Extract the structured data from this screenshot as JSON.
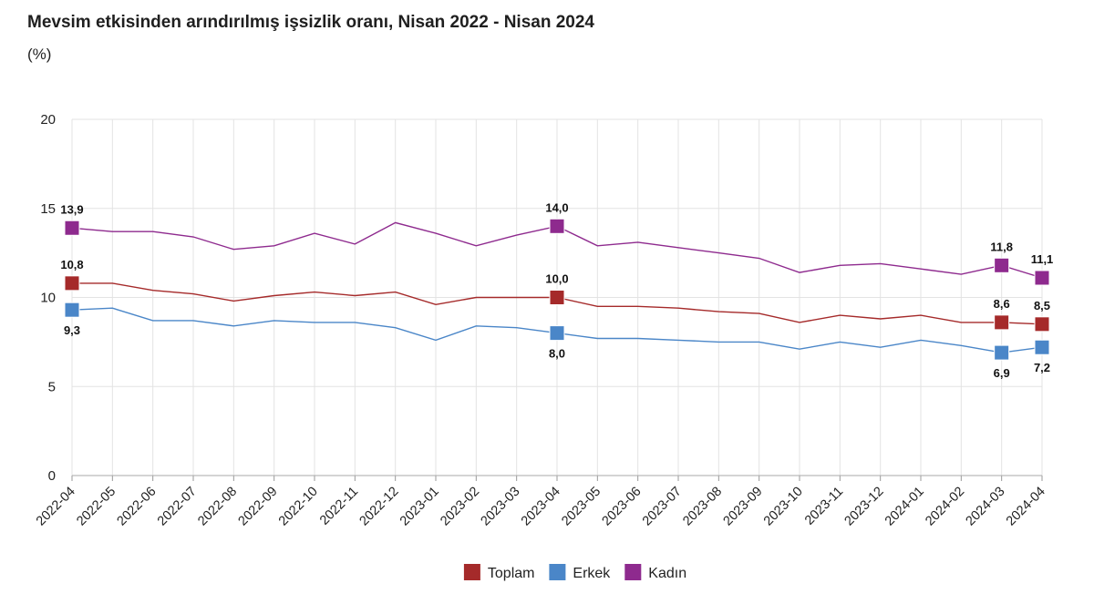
{
  "title": "Mevsim etkisinden arındırılmış işsizlik oranı, Nisan 2022 - Nisan 2024",
  "subtitle": "(%)",
  "chart_data": {
    "type": "line",
    "title": "Mevsim etkisinden arındırılmış işsizlik oranı, Nisan 2022 - Nisan 2024",
    "ylabel": "(%)",
    "ylim": [
      0,
      20
    ],
    "yticks": [
      0,
      5,
      10,
      15,
      20
    ],
    "grid": true,
    "legend_position": "bottom",
    "x": [
      "2022-04",
      "2022-05",
      "2022-06",
      "2022-07",
      "2022-08",
      "2022-09",
      "2022-10",
      "2022-11",
      "2022-12",
      "2023-01",
      "2023-02",
      "2023-03",
      "2023-04",
      "2023-05",
      "2023-06",
      "2023-07",
      "2023-08",
      "2023-09",
      "2023-10",
      "2023-11",
      "2023-12",
      "2024-01",
      "2024-02",
      "2024-03",
      "2024-04"
    ],
    "series": [
      {
        "name": "Toplam",
        "color": "#a52a2a",
        "values": [
          10.8,
          10.8,
          10.4,
          10.2,
          9.8,
          10.1,
          10.3,
          10.1,
          10.3,
          9.6,
          10.0,
          10.0,
          10.0,
          9.5,
          9.5,
          9.4,
          9.2,
          9.1,
          8.6,
          9.0,
          8.8,
          9.0,
          8.6,
          8.6,
          8.5
        ]
      },
      {
        "name": "Erkek",
        "color": "#4a86c8",
        "values": [
          9.3,
          9.4,
          8.7,
          8.7,
          8.4,
          8.7,
          8.6,
          8.6,
          8.3,
          7.6,
          8.4,
          8.3,
          8.0,
          7.7,
          7.7,
          7.6,
          7.5,
          7.5,
          7.1,
          7.5,
          7.2,
          7.6,
          7.3,
          6.9,
          7.2
        ]
      },
      {
        "name": "Kadın",
        "color": "#8e2a8e",
        "values": [
          13.9,
          13.7,
          13.7,
          13.4,
          12.7,
          12.9,
          13.6,
          13.0,
          14.2,
          13.6,
          12.9,
          13.5,
          14.0,
          12.9,
          13.1,
          12.8,
          12.5,
          12.2,
          11.4,
          11.8,
          11.9,
          11.6,
          11.3,
          11.8,
          11.1
        ]
      }
    ],
    "marked_indices": [
      0,
      12,
      23,
      24
    ],
    "data_labels": [
      {
        "series": "Kadın",
        "index": 0,
        "text": "13,9",
        "pos": "above"
      },
      {
        "series": "Toplam",
        "index": 0,
        "text": "10,8",
        "pos": "above"
      },
      {
        "series": "Erkek",
        "index": 0,
        "text": "9,3",
        "pos": "below"
      },
      {
        "series": "Kadın",
        "index": 12,
        "text": "14,0",
        "pos": "above"
      },
      {
        "series": "Toplam",
        "index": 12,
        "text": "10,0",
        "pos": "above"
      },
      {
        "series": "Erkek",
        "index": 12,
        "text": "8,0",
        "pos": "below"
      },
      {
        "series": "Kadın",
        "index": 23,
        "text": "11,8",
        "pos": "above"
      },
      {
        "series": "Toplam",
        "index": 23,
        "text": "8,6",
        "pos": "above"
      },
      {
        "series": "Erkek",
        "index": 23,
        "text": "6,9",
        "pos": "below"
      },
      {
        "series": "Kadın",
        "index": 24,
        "text": "11,1",
        "pos": "above"
      },
      {
        "series": "Toplam",
        "index": 24,
        "text": "8,5",
        "pos": "above"
      },
      {
        "series": "Erkek",
        "index": 24,
        "text": "7,2",
        "pos": "below"
      }
    ]
  }
}
